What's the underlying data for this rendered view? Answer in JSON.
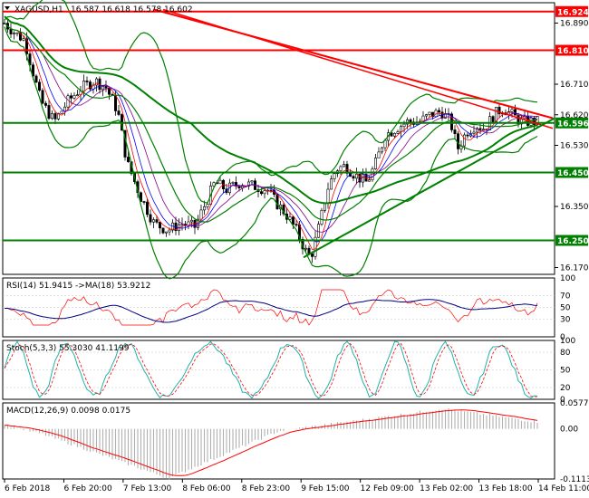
{
  "chart_data": [
    {
      "type": "candlestick",
      "header": {
        "symbol": "XAGUSD,H1",
        "ohlc": "16.587 16.618 16.578 16.602"
      },
      "ylim": [
        16.15,
        16.95
      ],
      "price_ticks": [
        "16.890",
        "16.710",
        "16.620",
        "16.530",
        "16.350",
        "16.170"
      ],
      "levels": [
        {
          "value": 16.924,
          "label": "16.924",
          "color": "#ff0000"
        },
        {
          "value": 16.81,
          "label": "16.810",
          "color": "#ff0000"
        },
        {
          "value": 16.596,
          "label": "16.596",
          "color": "#008000"
        },
        {
          "value": 16.45,
          "label": "16.450",
          "color": "#008000"
        },
        {
          "value": 16.25,
          "label": "16.250",
          "color": "#008000"
        }
      ],
      "hidden_ticks": [
        "16.780",
        "16.450"
      ],
      "time_labels": [
        "6 Feb 2018",
        "6 Feb 20:00",
        "7 Feb 13:00",
        "8 Feb 06:00",
        "8 Feb 23:00",
        "9 Feb 15:00",
        "12 Feb 09:00",
        "13 Feb 02:00",
        "13 Feb 18:00",
        "14 Feb 11:00"
      ],
      "colors": {
        "up": "#008000",
        "down": "#ff0000",
        "trend_down": "#ff0000",
        "trend_up": "#008000",
        "band": "#008000"
      }
    },
    {
      "type": "line",
      "header": "RSI(14) 51.9415 ->MA(18) 53.9212",
      "ylim": [
        0,
        100
      ],
      "ticks": [
        "100",
        "70",
        "50",
        "30",
        "0"
      ],
      "series": [
        {
          "name": "RSI(14)",
          "color": "#ff0000"
        },
        {
          "name": "MA(18)",
          "color": "#000080"
        }
      ]
    },
    {
      "type": "line",
      "header": "Stoch(5,3,3) 55.3030 41.1199",
      "ylim": [
        0,
        100
      ],
      "ticks": [
        "100",
        "80",
        "50",
        "20",
        "0"
      ],
      "series": [
        {
          "name": "%K",
          "color": "#20b2aa"
        },
        {
          "name": "%D",
          "color": "#ff0000"
        }
      ]
    },
    {
      "type": "bar",
      "header": "MACD(12,26,9) 0.0098 0.0175",
      "ylim": [
        -0.1113,
        0.0577
      ],
      "ticks": [
        "0.0577",
        "0.00",
        "-0.1113"
      ],
      "series": [
        {
          "name": "MACD",
          "color": "#b0b0b0"
        },
        {
          "name": "Signal",
          "color": "#ff0000"
        }
      ]
    }
  ]
}
